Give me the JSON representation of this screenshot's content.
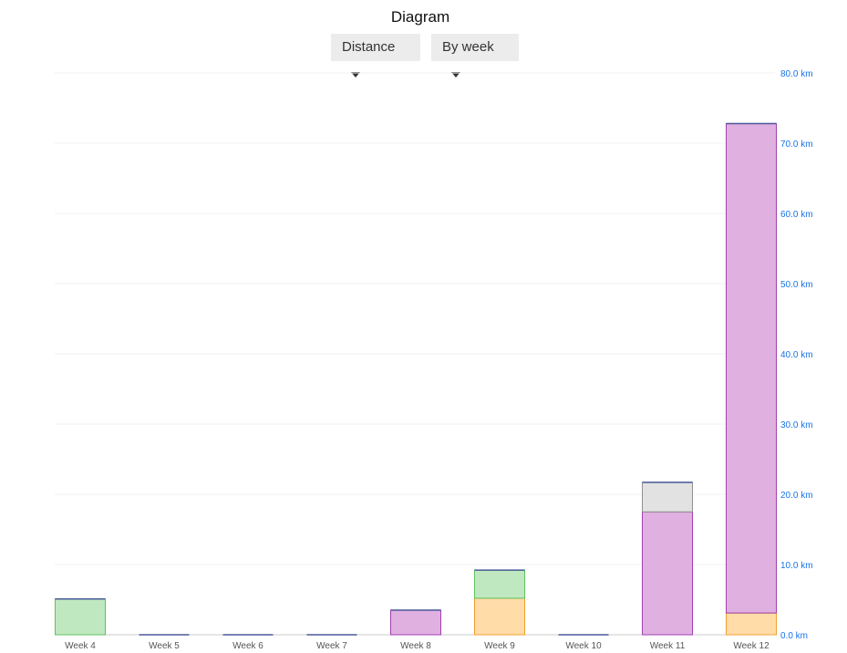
{
  "header": {
    "title": "Diagram",
    "metric_select": "Distance",
    "period_select": "By week"
  },
  "chart_data": {
    "type": "bar",
    "stacked": true,
    "categories": [
      "Week 4",
      "Week 5",
      "Week 6",
      "Week 7",
      "Week 8",
      "Week 9",
      "Week 10",
      "Week 11",
      "Week 12"
    ],
    "series": [
      {
        "color": "#ffdca8",
        "stroke": "#f0a030",
        "values": [
          0,
          0,
          0,
          0,
          0,
          5.2,
          0,
          0,
          3.1
        ]
      },
      {
        "color": "#e0b0e0",
        "stroke": "#a040b0",
        "values": [
          0,
          0,
          0,
          0,
          3.5,
          0,
          0,
          17.5,
          69.7
        ]
      },
      {
        "color": "#c0e8c0",
        "stroke": "#60c060",
        "values": [
          5.1,
          0,
          0,
          0,
          0,
          4.0,
          0,
          0,
          0
        ]
      },
      {
        "color": "#e2e2e2",
        "stroke": "#909090",
        "values": [
          0,
          0,
          0,
          0,
          0,
          0,
          0,
          4.2,
          0
        ]
      }
    ],
    "y_ticks": [
      "0.0 km",
      "10.0 km",
      "20.0 km",
      "30.0 km",
      "40.0 km",
      "50.0 km",
      "60.0 km",
      "70.0 km",
      "80.0 km"
    ],
    "ylim": [
      0,
      80
    ],
    "y_axis_position": "right",
    "axis_color": "#1a73e8",
    "grid": true
  }
}
